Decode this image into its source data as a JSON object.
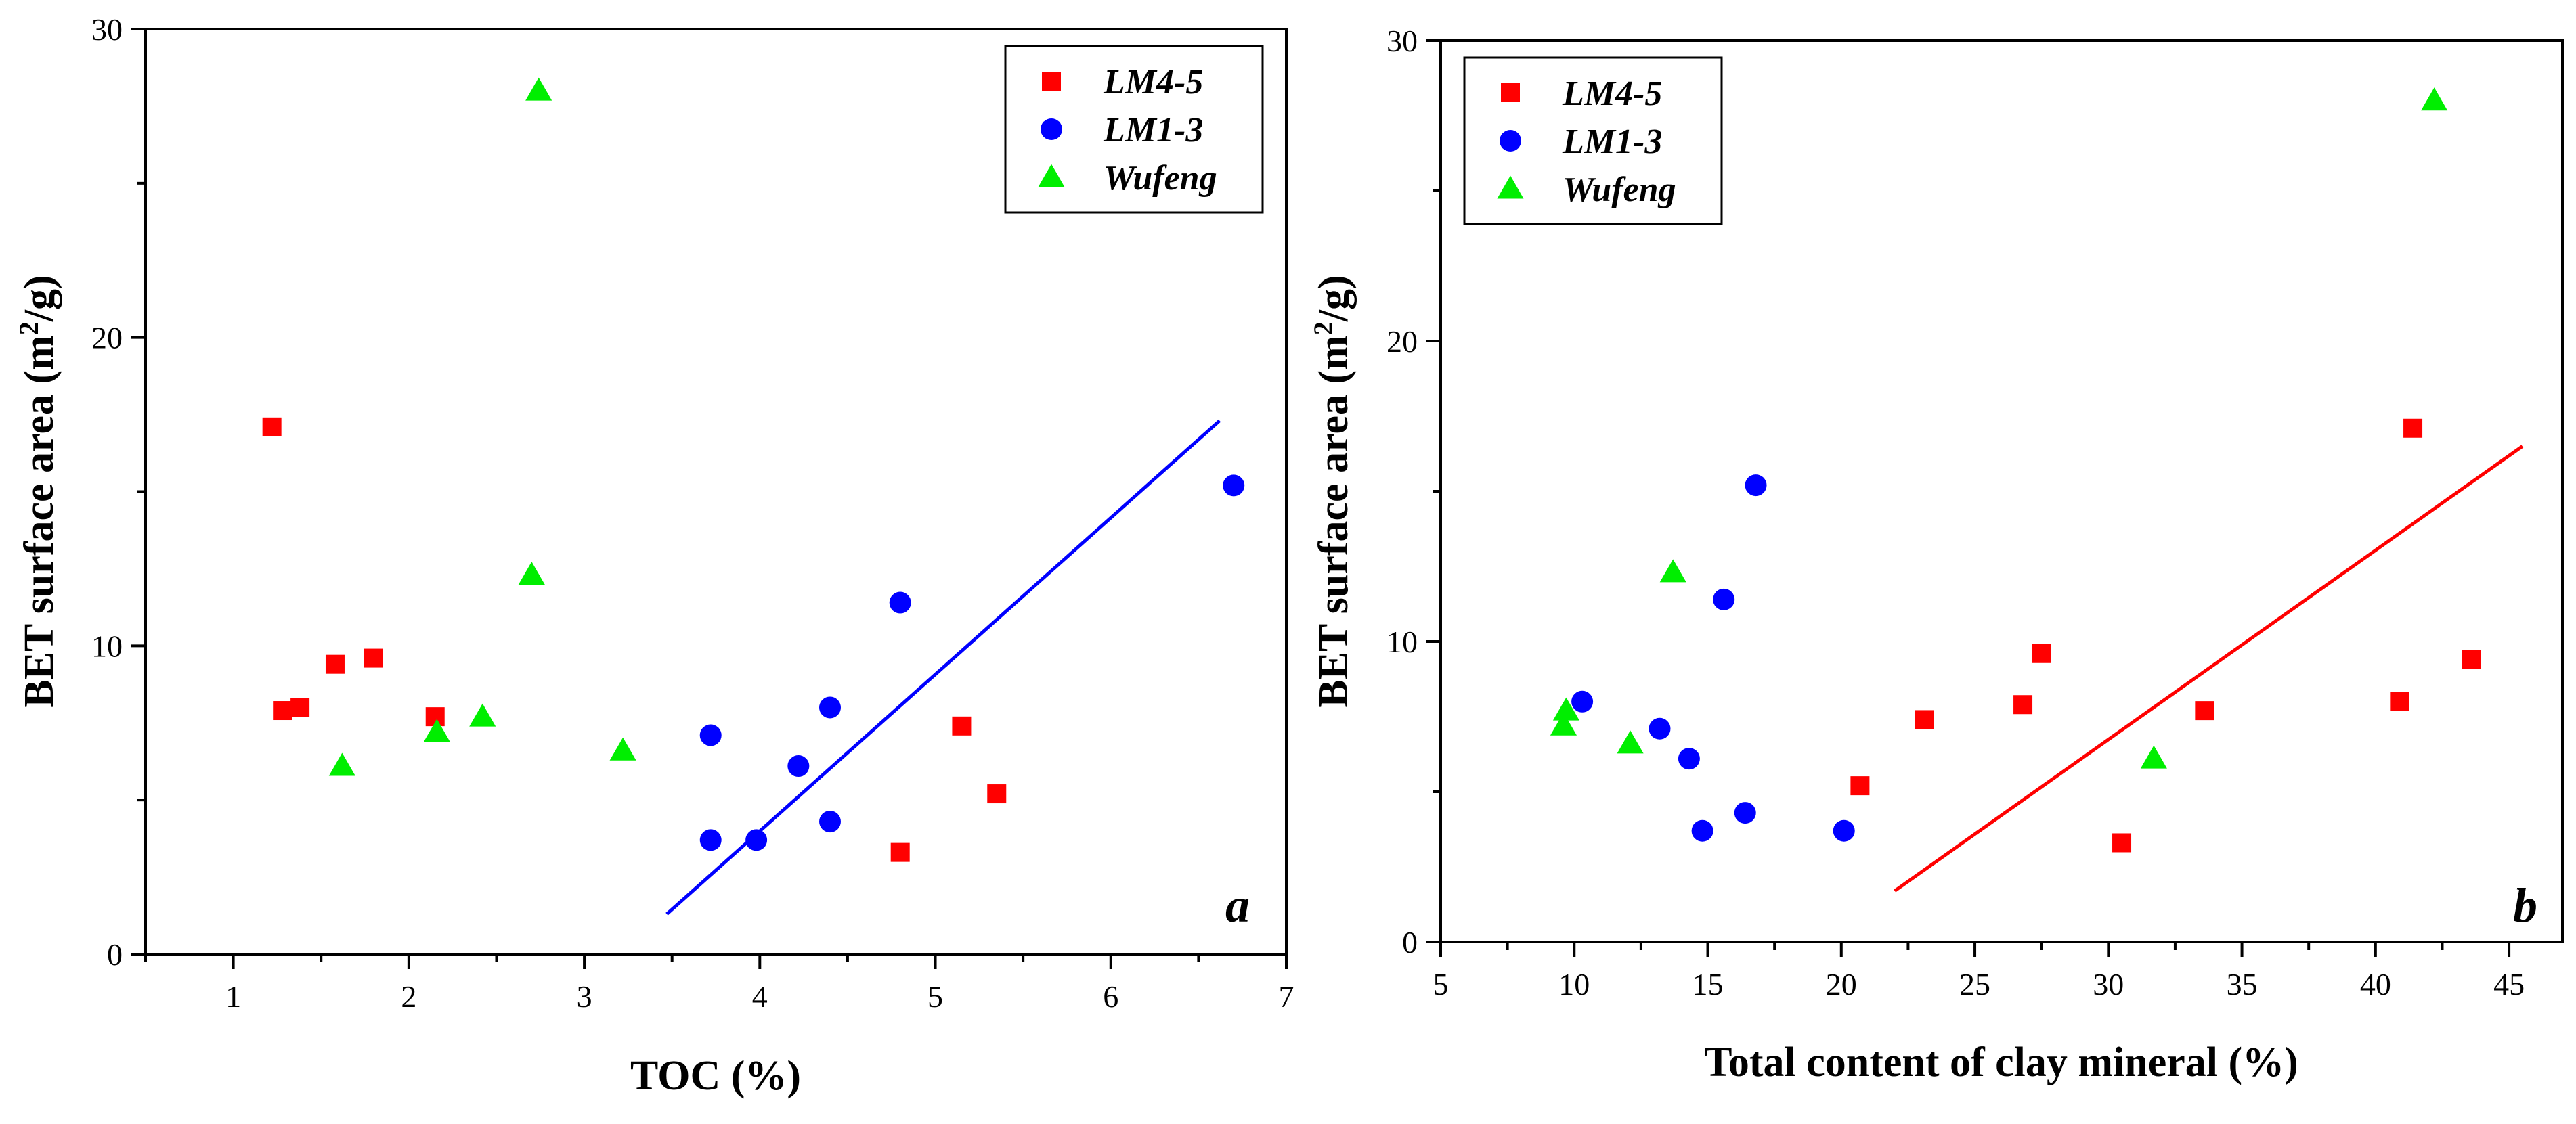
{
  "colors": {
    "LM4-5": "#ff0000",
    "LM1-3": "#0000ff",
    "Wufeng": "#00ee00",
    "axis": "#000000"
  },
  "chart_data": [
    {
      "type": "scatter",
      "panel": "a",
      "xlabel": "TOC (%)",
      "ylabel_main": "BET surface area (m",
      "ylabel_sup": "2",
      "ylabel_tail": "/g)",
      "xlim": [
        0.5,
        7
      ],
      "ylim": [
        0,
        30
      ],
      "xticks": [
        1,
        2,
        3,
        4,
        5,
        6,
        7
      ],
      "yticks": [
        0,
        10,
        20,
        30
      ],
      "legend_position": "top-right",
      "series": [
        {
          "name": "LM4-5",
          "marker": "square",
          "x": [
            1.22,
            1.28,
            1.38,
            1.58,
            1.8,
            2.15,
            4.8,
            5.15,
            5.35
          ],
          "y": [
            17.1,
            7.9,
            8.0,
            9.4,
            9.6,
            7.7,
            3.3,
            7.4,
            5.2
          ]
        },
        {
          "name": "LM1-3",
          "marker": "circle",
          "x": [
            3.72,
            3.72,
            3.98,
            4.22,
            4.4,
            4.4,
            4.8,
            6.7
          ],
          "y": [
            3.7,
            7.1,
            3.7,
            6.1,
            8.0,
            4.3,
            11.4,
            15.2
          ]
        },
        {
          "name": "Wufeng",
          "marker": "triangle",
          "x": [
            1.62,
            2.16,
            2.42,
            2.7,
            2.74,
            3.22
          ],
          "y": [
            6.1,
            7.2,
            7.7,
            12.3,
            28.0,
            6.6
          ]
        }
      ],
      "trendline": {
        "color_series": "LM1-3",
        "x": [
          3.47,
          6.62
        ],
        "y": [
          1.3,
          17.3
        ]
      }
    },
    {
      "type": "scatter",
      "panel": "b",
      "xlabel": "Total content of clay mineral (%)",
      "ylabel_main": "BET surface area (m",
      "ylabel_sup": "2",
      "ylabel_tail": "/g)",
      "xlim": [
        5,
        47
      ],
      "ylim": [
        0,
        30
      ],
      "xticks": [
        5,
        10,
        15,
        20,
        25,
        30,
        35,
        40,
        45
      ],
      "yticks": [
        0,
        10,
        20,
        30
      ],
      "legend_position": "top-left",
      "series": [
        {
          "name": "LM4-5",
          "marker": "square",
          "x": [
            20.7,
            23.1,
            26.8,
            27.5,
            30.5,
            33.6,
            40.9,
            41.4,
            43.6
          ],
          "y": [
            5.2,
            7.4,
            7.9,
            9.6,
            3.3,
            7.7,
            8.0,
            17.1,
            9.4
          ]
        },
        {
          "name": "LM1-3",
          "marker": "circle",
          "x": [
            10.3,
            13.2,
            14.3,
            14.8,
            15.6,
            16.4,
            16.8,
            20.1
          ],
          "y": [
            8.0,
            7.1,
            6.1,
            3.7,
            11.4,
            4.3,
            15.2,
            3.7
          ]
        },
        {
          "name": "Wufeng",
          "marker": "triangle",
          "x": [
            9.6,
            9.7,
            12.1,
            13.7,
            31.7,
            42.2
          ],
          "y": [
            7.2,
            7.7,
            6.6,
            12.3,
            6.1,
            28.0
          ]
        }
      ],
      "trendline": {
        "color_series": "LM4-5",
        "x": [
          22.0,
          45.5
        ],
        "y": [
          1.7,
          16.5
        ]
      }
    }
  ]
}
